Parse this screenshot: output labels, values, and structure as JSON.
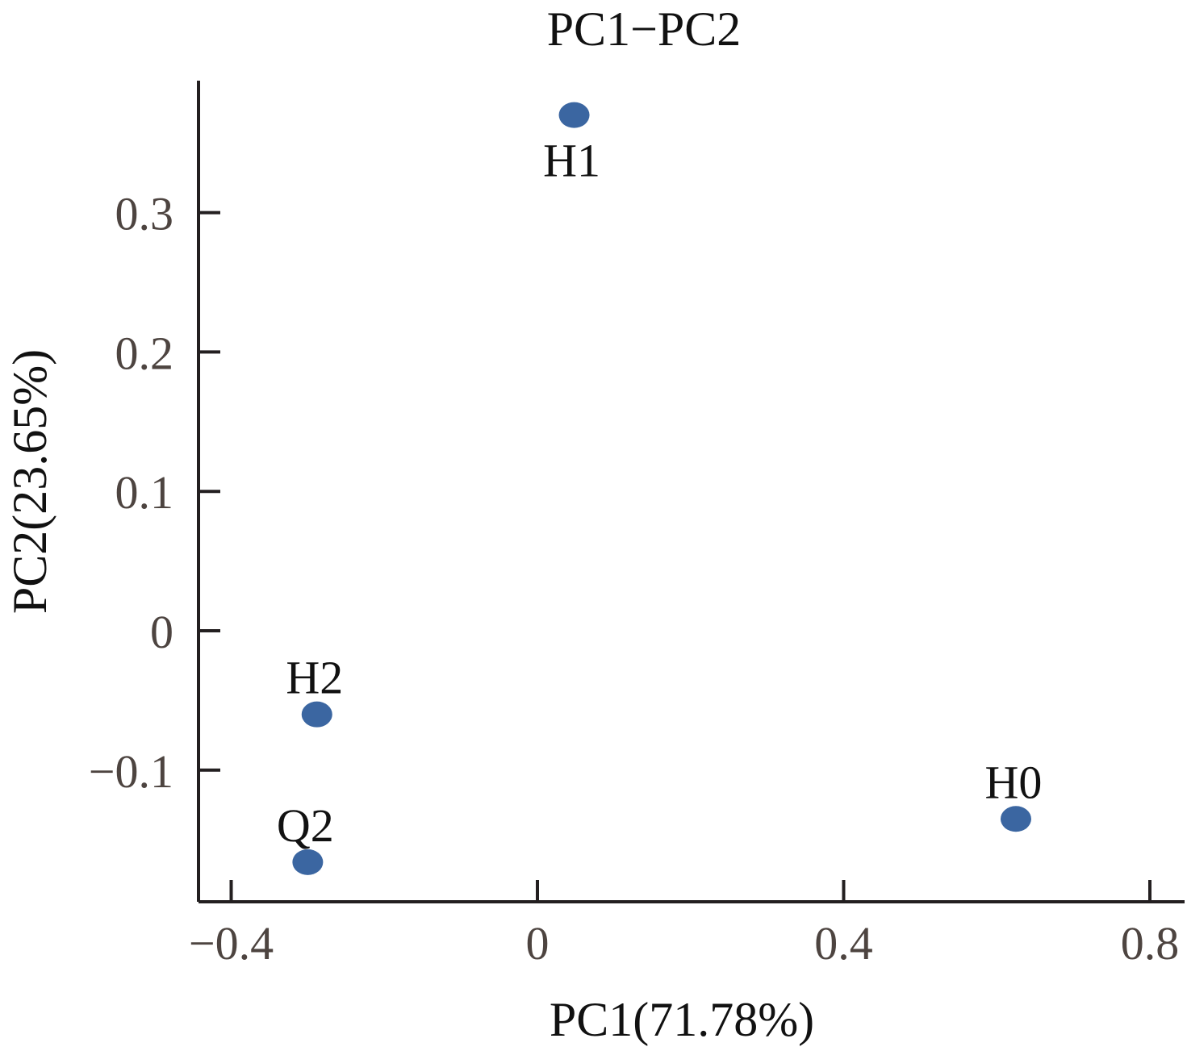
{
  "chart_data": {
    "type": "scatter",
    "title": "PC1−PC2",
    "xlabel": "PC1(71.78%)",
    "ylabel": "PC2(23.65%)",
    "xlim": [
      -0.44,
      0.845
    ],
    "ylim": [
      -0.195,
      0.395
    ],
    "x_ticks": [
      -0.4,
      0,
      0.4,
      0.8
    ],
    "x_tick_labels": [
      "−0.4",
      "0",
      "0.4",
      "0.8"
    ],
    "y_ticks": [
      -0.1,
      0,
      0.1,
      0.2,
      0.3
    ],
    "y_tick_labels": [
      "−0.1",
      "0",
      "0.1",
      "0.2",
      "0.3"
    ],
    "grid": false,
    "points": [
      {
        "label": "H1",
        "x": 0.048,
        "y": 0.37,
        "label_position": "below"
      },
      {
        "label": "H2",
        "x": -0.288,
        "y": -0.06,
        "label_position": "above"
      },
      {
        "label": "Q2",
        "x": -0.3,
        "y": -0.166,
        "label_position": "above"
      },
      {
        "label": "H0",
        "x": 0.625,
        "y": -0.135,
        "label_position": "above"
      }
    ],
    "colors": {
      "point": "#3b66a1",
      "axis": "#231f20",
      "tick_label": "#4d4440",
      "text": "#111111"
    }
  }
}
